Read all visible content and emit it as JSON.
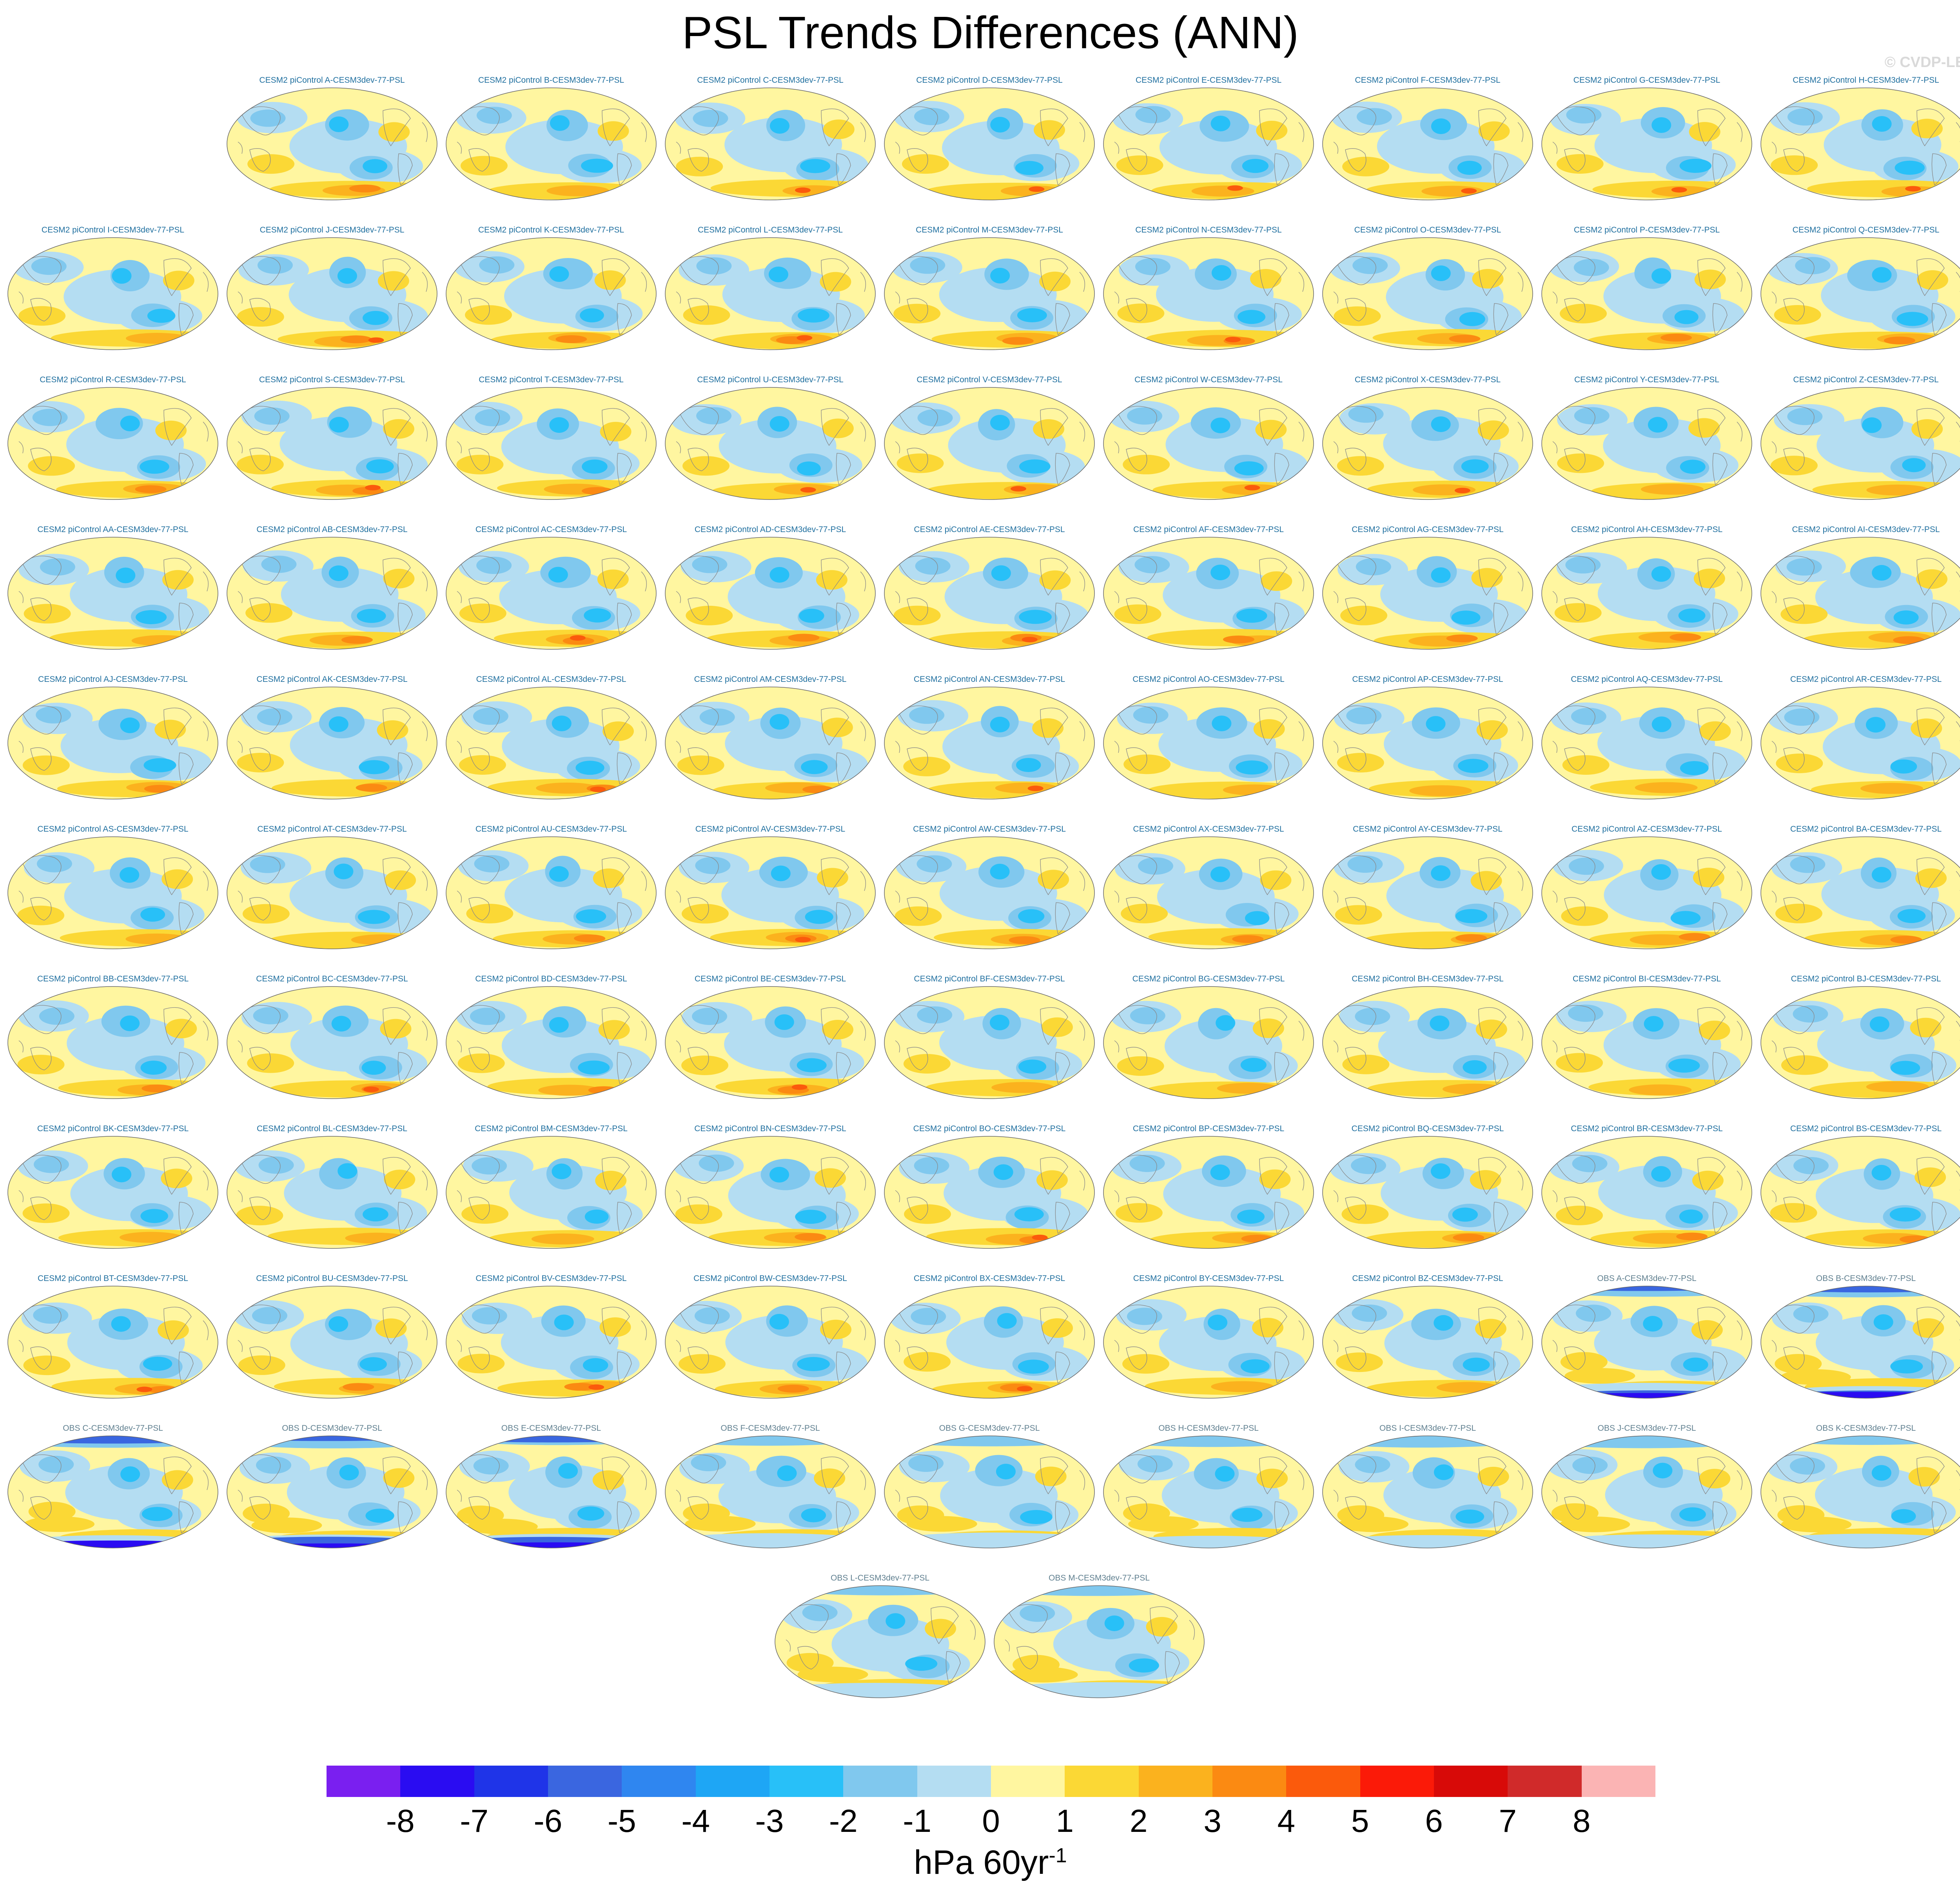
{
  "title": "PSL Trends Differences (ANN)",
  "credit": "© CVDP-LE",
  "panels": [
    {
      "label": "CESM2 piControl A-CESM3dev-77-PSL",
      "kind": "cesm"
    },
    {
      "label": "CESM2 piControl B-CESM3dev-77-PSL",
      "kind": "cesm"
    },
    {
      "label": "CESM2 piControl C-CESM3dev-77-PSL",
      "kind": "cesm"
    },
    {
      "label": "CESM2 piControl D-CESM3dev-77-PSL",
      "kind": "cesm"
    },
    {
      "label": "CESM2 piControl E-CESM3dev-77-PSL",
      "kind": "cesm"
    },
    {
      "label": "CESM2 piControl F-CESM3dev-77-PSL",
      "kind": "cesm"
    },
    {
      "label": "CESM2 piControl G-CESM3dev-77-PSL",
      "kind": "cesm"
    },
    {
      "label": "CESM2 piControl H-CESM3dev-77-PSL",
      "kind": "cesm"
    },
    {
      "label": "CESM2 piControl I-CESM3dev-77-PSL",
      "kind": "cesm"
    },
    {
      "label": "CESM2 piControl J-CESM3dev-77-PSL",
      "kind": "cesm"
    },
    {
      "label": "CESM2 piControl K-CESM3dev-77-PSL",
      "kind": "cesm"
    },
    {
      "label": "CESM2 piControl L-CESM3dev-77-PSL",
      "kind": "cesm"
    },
    {
      "label": "CESM2 piControl M-CESM3dev-77-PSL",
      "kind": "cesm"
    },
    {
      "label": "CESM2 piControl N-CESM3dev-77-PSL",
      "kind": "cesm"
    },
    {
      "label": "CESM2 piControl O-CESM3dev-77-PSL",
      "kind": "cesm"
    },
    {
      "label": "CESM2 piControl P-CESM3dev-77-PSL",
      "kind": "cesm"
    },
    {
      "label": "CESM2 piControl Q-CESM3dev-77-PSL",
      "kind": "cesm"
    },
    {
      "label": "CESM2 piControl R-CESM3dev-77-PSL",
      "kind": "cesm"
    },
    {
      "label": "CESM2 piControl S-CESM3dev-77-PSL",
      "kind": "cesm"
    },
    {
      "label": "CESM2 piControl T-CESM3dev-77-PSL",
      "kind": "cesm"
    },
    {
      "label": "CESM2 piControl U-CESM3dev-77-PSL",
      "kind": "cesm"
    },
    {
      "label": "CESM2 piControl V-CESM3dev-77-PSL",
      "kind": "cesm"
    },
    {
      "label": "CESM2 piControl W-CESM3dev-77-PSL",
      "kind": "cesm"
    },
    {
      "label": "CESM2 piControl X-CESM3dev-77-PSL",
      "kind": "cesm"
    },
    {
      "label": "CESM2 piControl Y-CESM3dev-77-PSL",
      "kind": "cesm"
    },
    {
      "label": "CESM2 piControl Z-CESM3dev-77-PSL",
      "kind": "cesm"
    },
    {
      "label": "CESM2 piControl AA-CESM3dev-77-PSL",
      "kind": "cesm"
    },
    {
      "label": "CESM2 piControl AB-CESM3dev-77-PSL",
      "kind": "cesm"
    },
    {
      "label": "CESM2 piControl AC-CESM3dev-77-PSL",
      "kind": "cesm"
    },
    {
      "label": "CESM2 piControl AD-CESM3dev-77-PSL",
      "kind": "cesm"
    },
    {
      "label": "CESM2 piControl AE-CESM3dev-77-PSL",
      "kind": "cesm"
    },
    {
      "label": "CESM2 piControl AF-CESM3dev-77-PSL",
      "kind": "cesm"
    },
    {
      "label": "CESM2 piControl AG-CESM3dev-77-PSL",
      "kind": "cesm"
    },
    {
      "label": "CESM2 piControl AH-CESM3dev-77-PSL",
      "kind": "cesm"
    },
    {
      "label": "CESM2 piControl AI-CESM3dev-77-PSL",
      "kind": "cesm"
    },
    {
      "label": "CESM2 piControl AJ-CESM3dev-77-PSL",
      "kind": "cesm"
    },
    {
      "label": "CESM2 piControl AK-CESM3dev-77-PSL",
      "kind": "cesm"
    },
    {
      "label": "CESM2 piControl AL-CESM3dev-77-PSL",
      "kind": "cesm"
    },
    {
      "label": "CESM2 piControl AM-CESM3dev-77-PSL",
      "kind": "cesm"
    },
    {
      "label": "CESM2 piControl AN-CESM3dev-77-PSL",
      "kind": "cesm"
    },
    {
      "label": "CESM2 piControl AO-CESM3dev-77-PSL",
      "kind": "cesm"
    },
    {
      "label": "CESM2 piControl AP-CESM3dev-77-PSL",
      "kind": "cesm"
    },
    {
      "label": "CESM2 piControl AQ-CESM3dev-77-PSL",
      "kind": "cesm"
    },
    {
      "label": "CESM2 piControl AR-CESM3dev-77-PSL",
      "kind": "cesm"
    },
    {
      "label": "CESM2 piControl AS-CESM3dev-77-PSL",
      "kind": "cesm"
    },
    {
      "label": "CESM2 piControl AT-CESM3dev-77-PSL",
      "kind": "cesm"
    },
    {
      "label": "CESM2 piControl AU-CESM3dev-77-PSL",
      "kind": "cesm"
    },
    {
      "label": "CESM2 piControl AV-CESM3dev-77-PSL",
      "kind": "cesm"
    },
    {
      "label": "CESM2 piControl AW-CESM3dev-77-PSL",
      "kind": "cesm"
    },
    {
      "label": "CESM2 piControl AX-CESM3dev-77-PSL",
      "kind": "cesm"
    },
    {
      "label": "CESM2 piControl AY-CESM3dev-77-PSL",
      "kind": "cesm"
    },
    {
      "label": "CESM2 piControl AZ-CESM3dev-77-PSL",
      "kind": "cesm"
    },
    {
      "label": "CESM2 piControl BA-CESM3dev-77-PSL",
      "kind": "cesm"
    },
    {
      "label": "CESM2 piControl BB-CESM3dev-77-PSL",
      "kind": "cesm"
    },
    {
      "label": "CESM2 piControl BC-CESM3dev-77-PSL",
      "kind": "cesm"
    },
    {
      "label": "CESM2 piControl BD-CESM3dev-77-PSL",
      "kind": "cesm"
    },
    {
      "label": "CESM2 piControl BE-CESM3dev-77-PSL",
      "kind": "cesm"
    },
    {
      "label": "CESM2 piControl BF-CESM3dev-77-PSL",
      "kind": "cesm"
    },
    {
      "label": "CESM2 piControl BG-CESM3dev-77-PSL",
      "kind": "cesm"
    },
    {
      "label": "CESM2 piControl BH-CESM3dev-77-PSL",
      "kind": "cesm"
    },
    {
      "label": "CESM2 piControl BI-CESM3dev-77-PSL",
      "kind": "cesm"
    },
    {
      "label": "CESM2 piControl BJ-CESM3dev-77-PSL",
      "kind": "cesm"
    },
    {
      "label": "CESM2 piControl BK-CESM3dev-77-PSL",
      "kind": "cesm"
    },
    {
      "label": "CESM2 piControl BL-CESM3dev-77-PSL",
      "kind": "cesm"
    },
    {
      "label": "CESM2 piControl BM-CESM3dev-77-PSL",
      "kind": "cesm"
    },
    {
      "label": "CESM2 piControl BN-CESM3dev-77-PSL",
      "kind": "cesm"
    },
    {
      "label": "CESM2 piControl BO-CESM3dev-77-PSL",
      "kind": "cesm"
    },
    {
      "label": "CESM2 piControl BP-CESM3dev-77-PSL",
      "kind": "cesm"
    },
    {
      "label": "CESM2 piControl BQ-CESM3dev-77-PSL",
      "kind": "cesm"
    },
    {
      "label": "CESM2 piControl BR-CESM3dev-77-PSL",
      "kind": "cesm"
    },
    {
      "label": "CESM2 piControl BS-CESM3dev-77-PSL",
      "kind": "cesm"
    },
    {
      "label": "CESM2 piControl BT-CESM3dev-77-PSL",
      "kind": "cesm"
    },
    {
      "label": "CESM2 piControl BU-CESM3dev-77-PSL",
      "kind": "cesm"
    },
    {
      "label": "CESM2 piControl BV-CESM3dev-77-PSL",
      "kind": "cesm"
    },
    {
      "label": "CESM2 piControl BW-CESM3dev-77-PSL",
      "kind": "cesm"
    },
    {
      "label": "CESM2 piControl BX-CESM3dev-77-PSL",
      "kind": "cesm"
    },
    {
      "label": "CESM2 piControl BY-CESM3dev-77-PSL",
      "kind": "cesm"
    },
    {
      "label": "CESM2 piControl BZ-CESM3dev-77-PSL",
      "kind": "cesm"
    },
    {
      "label": "OBS A-CESM3dev-77-PSL",
      "kind": "obs"
    },
    {
      "label": "OBS B-CESM3dev-77-PSL",
      "kind": "obs"
    },
    {
      "label": "OBS C-CESM3dev-77-PSL",
      "kind": "obs"
    },
    {
      "label": "OBS D-CESM3dev-77-PSL",
      "kind": "obs"
    },
    {
      "label": "OBS E-CESM3dev-77-PSL",
      "kind": "obs"
    },
    {
      "label": "OBS F-CESM3dev-77-PSL",
      "kind": "obs"
    },
    {
      "label": "OBS G-CESM3dev-77-PSL",
      "kind": "obs"
    },
    {
      "label": "OBS H-CESM3dev-77-PSL",
      "kind": "obs"
    },
    {
      "label": "OBS I-CESM3dev-77-PSL",
      "kind": "obs"
    },
    {
      "label": "OBS J-CESM3dev-77-PSL",
      "kind": "obs"
    },
    {
      "label": "OBS K-CESM3dev-77-PSL",
      "kind": "obs"
    },
    {
      "label": "OBS L-CESM3dev-77-PSL",
      "kind": "obs"
    },
    {
      "label": "OBS M-CESM3dev-77-PSL",
      "kind": "obs"
    }
  ],
  "colorbar": {
    "colors": [
      "#7a1ff0",
      "#2a0cf2",
      "#1f34e8",
      "#3a66e0",
      "#2f86f0",
      "#1ea6f5",
      "#28c0f8",
      "#80c8ee",
      "#b4ddf2",
      "#fff6a0",
      "#fbd835",
      "#fbb21e",
      "#fb8a12",
      "#fb5a0c",
      "#fb1a08",
      "#d80a08",
      "#d02a2a",
      "#fbb4b4"
    ],
    "ticks": [
      "-8",
      "-7",
      "-6",
      "-5",
      "-4",
      "-3",
      "-2",
      "-1",
      "0",
      "1",
      "2",
      "3",
      "4",
      "5",
      "6",
      "7",
      "8"
    ]
  },
  "units": {
    "text": "hPa 60yr",
    "sup": "-1"
  }
}
